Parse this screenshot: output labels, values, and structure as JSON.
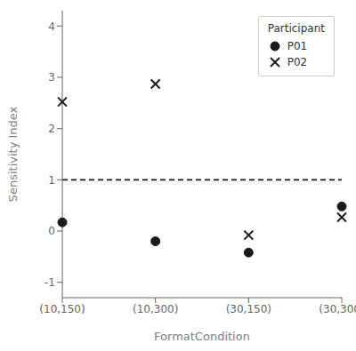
{
  "chart_data": {
    "type": "scatter",
    "xlabel": "FormatCondition",
    "ylabel": "Sensitivity Index",
    "categories": [
      "(10,150)",
      "(10,300)",
      "(30,150)",
      "(30,300)"
    ],
    "series": [
      {
        "name": "P01",
        "color": "#1a1a1a",
        "marker": "circle",
        "values": [
          0.17,
          -0.2,
          -0.42,
          0.48
        ]
      },
      {
        "name": "P02",
        "color": "#1a1a1a",
        "marker": "x",
        "values": [
          2.52,
          2.87,
          -0.08,
          0.27
        ]
      }
    ],
    "ylim": [
      -1.3,
      4.3
    ],
    "yticks": [
      -1,
      0,
      1,
      2,
      3,
      4
    ],
    "hlines": [
      {
        "y": 1.0,
        "color": "#1a1a1a",
        "line_style": "dashed"
      }
    ],
    "legend": "upper right",
    "legend_title": "Participant",
    "grid": false
  }
}
